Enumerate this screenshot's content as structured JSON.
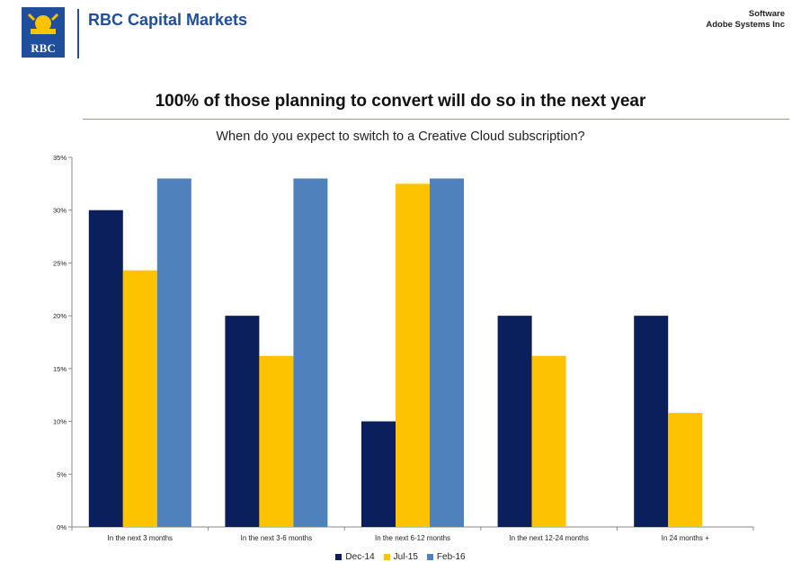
{
  "header": {
    "brand_name": "RBC Capital Markets",
    "logo_text": "RBC",
    "sector": "Software",
    "company": "Adobe Systems Inc"
  },
  "headline": "100% of those planning to convert will do so in the next year",
  "subtitle": "When do you expect to switch to a Creative Cloud subscription?",
  "chart_data": {
    "type": "bar",
    "title": "When do you expect to switch to a Creative Cloud subscription?",
    "categories": [
      "In the next 3 months",
      "In the next 3-6 months",
      "In the next 6-12 months",
      "In the next 12-24 months",
      "In 24 months +"
    ],
    "series": [
      {
        "name": "Dec-14",
        "values": [
          30,
          20,
          10,
          20,
          20
        ],
        "color": "#0a1f5c"
      },
      {
        "name": "Jul-15",
        "values": [
          24.3,
          16.2,
          32.5,
          16.2,
          10.8
        ],
        "color": "#fdc300"
      },
      {
        "name": "Feb-16",
        "values": [
          33,
          33,
          33,
          0,
          0
        ],
        "color": "#4f81bd"
      }
    ],
    "ylim": [
      0,
      35
    ],
    "yticks": [
      "0%",
      "5%",
      "10%",
      "15%",
      "20%",
      "25%",
      "30%",
      "35%"
    ],
    "ytick_values": [
      0,
      5,
      10,
      15,
      20,
      25,
      30,
      35
    ],
    "xlabel": "",
    "ylabel": "",
    "grid": false,
    "legend": "bottom"
  }
}
